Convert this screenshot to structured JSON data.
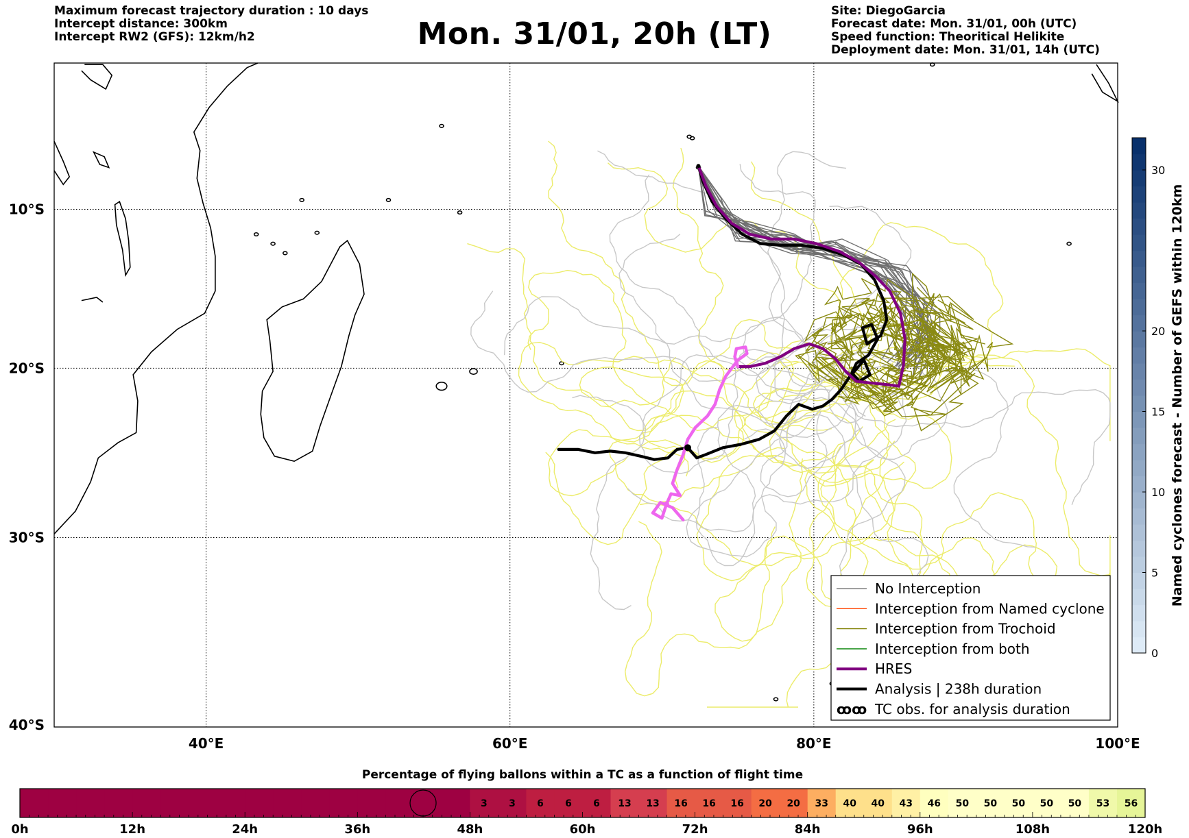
{
  "header": {
    "left_lines": [
      "Maximum forecast trajectory duration : 10 days",
      "Intercept distance: 300km",
      "Intercept RW2 (GFS):  12km/h2"
    ],
    "title": "Mon. 31/01, 20h (LT)",
    "right_lines": [
      "Site: DiegoGarcia",
      "Forecast date: Mon. 31/01, 00h (UTC)",
      "Speed function: Theoritical Helikite",
      "Deployment date: Mon. 31/01, 14h (UTC)"
    ]
  },
  "chart_data": [
    {
      "type": "line",
      "kind": "map trajectories",
      "x_axis": {
        "ticks": [
          "40°E",
          "60°E",
          "80°E",
          "100°E"
        ],
        "tick_values": [
          40,
          60,
          80,
          100
        ],
        "range": [
          30,
          100
        ]
      },
      "y_axis": {
        "ticks": [
          "10°S",
          "20°S",
          "30°S",
          "40°S"
        ],
        "tick_values": [
          -10,
          -20,
          -30,
          -40
        ],
        "range": [
          -40.1,
          -0.5
        ]
      },
      "grid": true,
      "legend_position": "lower-right",
      "legend": [
        {
          "label": "No Interception",
          "color": "#808080",
          "style": "thin"
        },
        {
          "label": "Interception from Named cyclone",
          "color": "#ff4500",
          "style": "thin"
        },
        {
          "label": "Interception from Trochoid",
          "color": "#808000",
          "style": "thin"
        },
        {
          "label": "Interception from both",
          "color": "#008000",
          "style": "thin"
        },
        {
          "label": "HRES",
          "color": "#800080",
          "style": "thick"
        },
        {
          "label": "Analysis | 238h duration",
          "color": "#000000",
          "style": "thick"
        },
        {
          "label": "TC obs. for analysis duration",
          "color": "#000000",
          "style": "symbol",
          "symbol": "ꝏ"
        }
      ],
      "series": [
        {
          "name": "Analysis | 238h duration",
          "color": "#000000",
          "points": [
            [
              72.4,
              -7.2
            ],
            [
              72.7,
              -8.2
            ],
            [
              73.3,
              -9.5
            ],
            [
              74.2,
              -10.6
            ],
            [
              75.3,
              -11.6
            ],
            [
              76.5,
              -12.2
            ],
            [
              77.8,
              -12.3
            ],
            [
              79.2,
              -12.3
            ],
            [
              80.6,
              -12.5
            ],
            [
              81.9,
              -12.9
            ],
            [
              83.1,
              -13.5
            ],
            [
              84.0,
              -14.5
            ],
            [
              84.6,
              -15.8
            ],
            [
              84.8,
              -17.0
            ],
            [
              84.4,
              -18.0
            ],
            [
              83.5,
              -18.5
            ],
            [
              83.2,
              -17.5
            ],
            [
              83.8,
              -17.3
            ],
            [
              84.2,
              -18.2
            ],
            [
              83.6,
              -19.2
            ],
            [
              82.8,
              -19.7
            ],
            [
              82.5,
              -20.3
            ],
            [
              83.0,
              -20.8
            ],
            [
              83.7,
              -20.4
            ],
            [
              83.3,
              -19.5
            ],
            [
              82.3,
              -20.6
            ],
            [
              81.8,
              -21.3
            ],
            [
              81.2,
              -21.9
            ],
            [
              80.6,
              -22.3
            ],
            [
              79.9,
              -22.5
            ],
            [
              79.0,
              -22.2
            ],
            [
              78.2,
              -22.9
            ],
            [
              77.4,
              -23.8
            ],
            [
              76.4,
              -24.3
            ],
            [
              75.2,
              -24.6
            ],
            [
              74.0,
              -24.8
            ],
            [
              72.9,
              -25.2
            ],
            [
              72.3,
              -25.4
            ],
            [
              71.7,
              -24.8
            ],
            [
              71.0,
              -24.9
            ],
            [
              70.4,
              -25.4
            ],
            [
              69.5,
              -25.5
            ],
            [
              68.6,
              -25.3
            ],
            [
              67.6,
              -25.1
            ],
            [
              66.6,
              -25.0
            ],
            [
              65.6,
              -25.1
            ],
            [
              64.5,
              -24.9
            ],
            [
              63.2,
              -24.9
            ]
          ]
        },
        {
          "name": "HRES",
          "color": "#800080",
          "points": [
            [
              72.4,
              -7.2
            ],
            [
              72.9,
              -8.5
            ],
            [
              73.6,
              -9.8
            ],
            [
              74.6,
              -10.9
            ],
            [
              75.8,
              -11.6
            ],
            [
              77.2,
              -11.9
            ],
            [
              78.7,
              -11.9
            ],
            [
              80.2,
              -12.2
            ],
            [
              81.7,
              -12.7
            ],
            [
              83.0,
              -13.4
            ],
            [
              84.1,
              -14.3
            ],
            [
              85.0,
              -15.2
            ],
            [
              85.7,
              -16.6
            ],
            [
              86.0,
              -18.2
            ],
            [
              85.9,
              -19.8
            ],
            [
              85.6,
              -21.1
            ],
            [
              84.8,
              -21.0
            ],
            [
              83.7,
              -20.9
            ],
            [
              82.8,
              -20.8
            ],
            [
              82.1,
              -20.2
            ],
            [
              81.4,
              -19.4
            ],
            [
              80.6,
              -18.8
            ],
            [
              79.7,
              -18.5
            ],
            [
              78.7,
              -18.8
            ],
            [
              77.8,
              -19.3
            ],
            [
              76.8,
              -19.7
            ],
            [
              75.8,
              -19.9
            ],
            [
              75.0,
              -19.9
            ]
          ]
        },
        {
          "name": "Analysis observations (pink)",
          "color": "#ee66ee",
          "points": [
            [
              75.0,
              -19.9
            ],
            [
              74.8,
              -19.3
            ],
            [
              74.9,
              -18.8
            ],
            [
              75.5,
              -18.7
            ],
            [
              75.6,
              -19.1
            ],
            [
              75.0,
              -19.5
            ],
            [
              74.2,
              -20.5
            ],
            [
              73.8,
              -21.3
            ],
            [
              73.5,
              -22.2
            ],
            [
              73.0,
              -22.9
            ],
            [
              72.2,
              -23.6
            ],
            [
              71.7,
              -24.3
            ],
            [
              71.4,
              -25.2
            ],
            [
              71.0,
              -26.1
            ],
            [
              70.7,
              -26.9
            ],
            [
              71.2,
              -27.6
            ],
            [
              70.6,
              -27.5
            ],
            [
              70.3,
              -28.1
            ],
            [
              70.0,
              -28.9
            ],
            [
              69.4,
              -28.6
            ],
            [
              69.9,
              -28.0
            ],
            [
              70.7,
              -28.3
            ],
            [
              71.4,
              -29.0
            ]
          ]
        }
      ]
    },
    {
      "type": "heatmap",
      "orientation": "vertical colorbar",
      "label": "Named cyclones forecast - Number of GEFS within 120km",
      "ticks": [
        0,
        5,
        10,
        15,
        20,
        30
      ],
      "range": [
        0,
        32
      ],
      "colors": [
        "#deebf7",
        "#08306b"
      ]
    },
    {
      "type": "bar",
      "title": "Percentage of flying ballons within a TC as a function of flight time",
      "x_ticks": [
        "0h",
        "12h",
        "24h",
        "36h",
        "48h",
        "60h",
        "72h",
        "84h",
        "96h",
        "108h",
        "120h"
      ],
      "x_range_hours": [
        0,
        120
      ],
      "bin_hours": 3,
      "values": [
        0,
        0,
        0,
        0,
        0,
        0,
        0,
        0,
        0,
        0,
        0,
        0,
        0,
        0,
        0,
        0,
        3,
        3,
        6,
        6,
        6,
        13,
        13,
        16,
        16,
        16,
        20,
        20,
        33,
        40,
        40,
        43,
        46,
        50,
        50,
        50,
        50,
        50,
        53,
        56
      ],
      "marker": {
        "symbol": "circle",
        "hour": 43
      }
    }
  ],
  "legend_symbol": "ꝏꝏ"
}
